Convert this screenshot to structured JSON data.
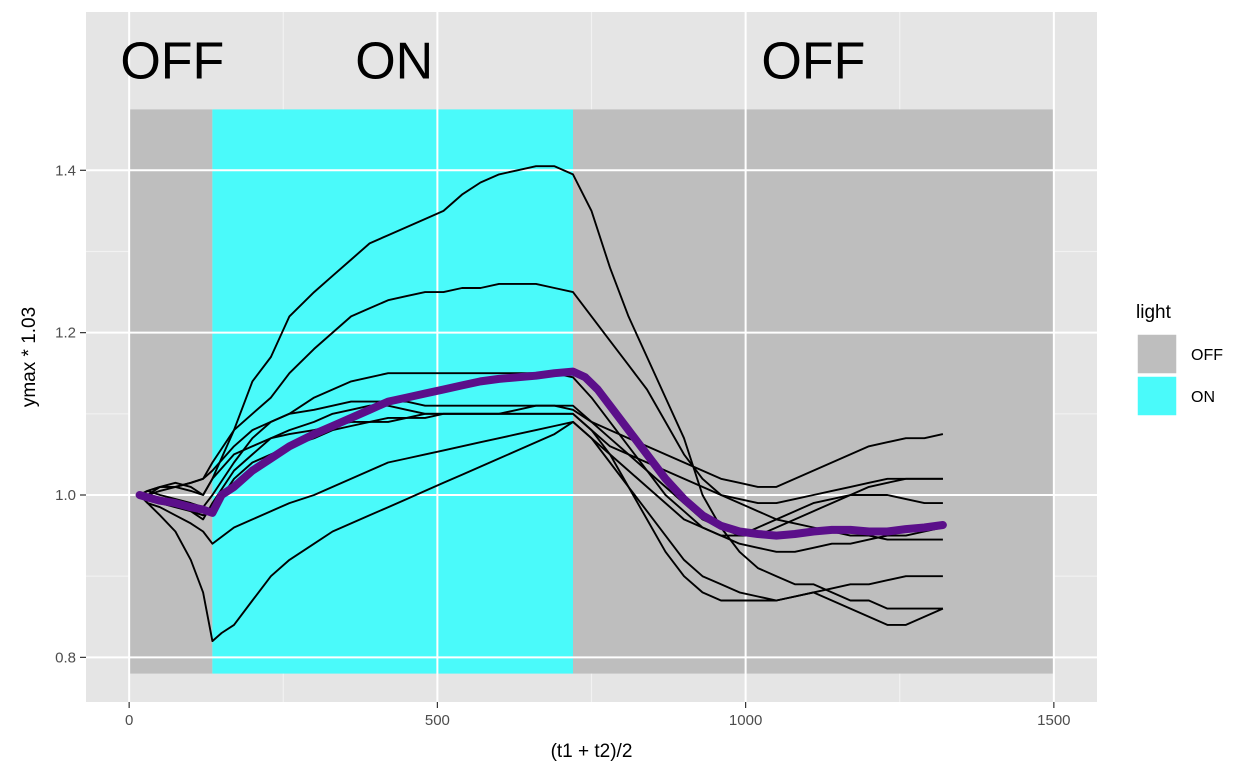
{
  "chart_data": {
    "type": "line",
    "xlabel": "(t1 + t2)/2",
    "ylabel": "ymax * 1.03",
    "xlim": [
      -70,
      1570
    ],
    "ylim": [
      0.745,
      1.595
    ],
    "x_ticks": [
      0,
      500,
      1000,
      1500
    ],
    "x_tick_labels": [
      "0",
      "500",
      "1000",
      "1500"
    ],
    "y_ticks": [
      0.8,
      1.0,
      1.2,
      1.4
    ],
    "y_tick_labels": [
      "0.8",
      "1.0",
      "1.2",
      "1.4"
    ],
    "grid": true,
    "background": "#e5e5e5",
    "light_periods": [
      {
        "state": "OFF",
        "x_start": 0,
        "x_end": 135,
        "color": "#bebebe"
      },
      {
        "state": "ON",
        "x_start": 135,
        "x_end": 720,
        "color": "#4afafa"
      },
      {
        "state": "OFF",
        "x_start": 720,
        "x_end": 1500,
        "color": "#bebebe"
      }
    ],
    "rect_y_range": [
      0.78,
      1.475
    ],
    "region_labels": [
      {
        "text": "OFF",
        "x": 70,
        "y": 1.53
      },
      {
        "text": "ON",
        "x": 430,
        "y": 1.53
      },
      {
        "text": "OFF",
        "x": 1110,
        "y": 1.53
      }
    ],
    "legend": {
      "title": "light",
      "position": "right",
      "entries": [
        {
          "label": "OFF",
          "color": "#bebebe"
        },
        {
          "label": "ON",
          "color": "#4afafa"
        }
      ]
    },
    "series_color": "#000000",
    "mean_color": "#5b0f8a",
    "series": [
      {
        "x": [
          17,
          30,
          50,
          75,
          100,
          120,
          135,
          170,
          200,
          230,
          260,
          300,
          330,
          360,
          390,
          420,
          450,
          480,
          510,
          540,
          570,
          600,
          630,
          660,
          690,
          720,
          750,
          780,
          810,
          840,
          870,
          900,
          930,
          960,
          990,
          1020,
          1050,
          1080,
          1110,
          1140,
          1170,
          1200,
          1230,
          1260,
          1290,
          1320
        ],
        "values": [
          1.0,
          1.0,
          1.01,
          1.015,
          1.01,
          1.0,
          1.02,
          1.08,
          1.14,
          1.17,
          1.22,
          1.25,
          1.27,
          1.29,
          1.31,
          1.32,
          1.33,
          1.34,
          1.35,
          1.37,
          1.385,
          1.395,
          1.4,
          1.405,
          1.405,
          1.395,
          1.35,
          1.28,
          1.22,
          1.17,
          1.12,
          1.07,
          1.0,
          0.96,
          0.93,
          0.91,
          0.9,
          0.89,
          0.89,
          0.88,
          0.87,
          0.87,
          0.86,
          0.86,
          0.86,
          0.86
        ]
      },
      {
        "x": [
          17,
          30,
          50,
          75,
          100,
          120,
          135,
          170,
          200,
          230,
          260,
          300,
          330,
          360,
          390,
          420,
          450,
          480,
          510,
          540,
          570,
          600,
          630,
          660,
          690,
          720,
          750,
          780,
          810,
          840,
          870,
          900,
          930,
          960,
          990,
          1020,
          1050,
          1080,
          1110,
          1140,
          1170,
          1200,
          1230,
          1260,
          1290,
          1320
        ],
        "values": [
          1.0,
          1.005,
          1.01,
          1.01,
          1.015,
          1.02,
          1.04,
          1.08,
          1.1,
          1.12,
          1.15,
          1.18,
          1.2,
          1.22,
          1.23,
          1.24,
          1.245,
          1.25,
          1.25,
          1.255,
          1.255,
          1.26,
          1.26,
          1.26,
          1.255,
          1.25,
          1.22,
          1.19,
          1.16,
          1.13,
          1.09,
          1.05,
          1.02,
          1.0,
          0.99,
          0.98,
          0.97,
          0.965,
          0.96,
          0.955,
          0.95,
          0.95,
          0.945,
          0.945,
          0.945,
          0.945
        ]
      },
      {
        "x": [
          17,
          30,
          50,
          75,
          100,
          120,
          135,
          170,
          200,
          230,
          260,
          300,
          330,
          360,
          390,
          420,
          450,
          480,
          510,
          540,
          570,
          600,
          630,
          660,
          690,
          720,
          750,
          780,
          810,
          840,
          870,
          900,
          930,
          960,
          990,
          1020,
          1050,
          1080,
          1110,
          1140,
          1170,
          1200,
          1230,
          1260,
          1290,
          1320
        ],
        "values": [
          1.0,
          1.0,
          0.995,
          0.99,
          0.98,
          0.97,
          0.99,
          1.03,
          1.05,
          1.07,
          1.08,
          1.09,
          1.1,
          1.105,
          1.11,
          1.11,
          1.105,
          1.1,
          1.1,
          1.1,
          1.1,
          1.1,
          1.105,
          1.11,
          1.11,
          1.11,
          1.09,
          1.07,
          1.05,
          1.03,
          1.01,
          0.99,
          0.97,
          0.96,
          0.95,
          0.95,
          0.96,
          0.97,
          0.98,
          0.99,
          1.0,
          1.01,
          1.015,
          1.02,
          1.02,
          1.02
        ]
      },
      {
        "x": [
          17,
          30,
          50,
          75,
          100,
          120,
          135,
          170,
          200,
          230,
          260,
          300,
          330,
          360,
          390,
          420,
          450,
          480,
          510,
          540,
          570,
          600,
          630,
          660,
          690,
          720,
          750,
          780,
          810,
          840,
          870,
          900,
          930,
          960,
          990,
          1020,
          1050,
          1080,
          1110,
          1140,
          1170,
          1200,
          1230,
          1260,
          1290,
          1320
        ],
        "values": [
          1.0,
          1.005,
          1.01,
          1.01,
          1.005,
          1.0,
          1.02,
          1.05,
          1.06,
          1.07,
          1.075,
          1.08,
          1.085,
          1.09,
          1.09,
          1.095,
          1.095,
          1.1,
          1.1,
          1.1,
          1.1,
          1.1,
          1.1,
          1.1,
          1.1,
          1.1,
          1.08,
          1.06,
          1.05,
          1.04,
          1.03,
          1.02,
          1.01,
          1.0,
          0.995,
          0.99,
          0.99,
          0.995,
          1.0,
          1.005,
          1.01,
          1.015,
          1.02,
          1.02,
          1.02,
          1.02
        ]
      },
      {
        "x": [
          17,
          30,
          50,
          75,
          100,
          120,
          135,
          170,
          200,
          230,
          260,
          300,
          330,
          360,
          390,
          420,
          450,
          480,
          510,
          540,
          570,
          600,
          630,
          660,
          690,
          720,
          750,
          780,
          810,
          840,
          870,
          900,
          930,
          960,
          990,
          1020,
          1050,
          1080,
          1110,
          1140,
          1170,
          1200,
          1230,
          1260,
          1290,
          1320
        ],
        "values": [
          1.0,
          0.99,
          0.985,
          0.975,
          0.965,
          0.955,
          0.94,
          0.96,
          0.97,
          0.98,
          0.99,
          1.0,
          1.01,
          1.02,
          1.03,
          1.04,
          1.045,
          1.05,
          1.055,
          1.06,
          1.065,
          1.07,
          1.075,
          1.08,
          1.085,
          1.09,
          1.07,
          1.04,
          1.01,
          0.98,
          0.95,
          0.92,
          0.9,
          0.89,
          0.88,
          0.875,
          0.87,
          0.875,
          0.88,
          0.885,
          0.89,
          0.89,
          0.895,
          0.9,
          0.9,
          0.9
        ]
      },
      {
        "x": [
          17,
          30,
          50,
          75,
          100,
          120,
          135,
          150,
          170,
          200,
          230,
          260,
          300,
          330,
          360,
          390,
          420,
          450,
          480,
          510,
          540,
          570,
          600,
          630,
          660,
          690,
          720,
          750,
          780,
          810,
          840,
          870,
          900,
          930,
          960,
          990,
          1020,
          1050,
          1080,
          1110,
          1140,
          1170,
          1200,
          1230,
          1260,
          1290,
          1320
        ],
        "values": [
          1.0,
          0.99,
          0.975,
          0.955,
          0.92,
          0.88,
          0.82,
          0.83,
          0.84,
          0.87,
          0.9,
          0.92,
          0.94,
          0.955,
          0.965,
          0.975,
          0.985,
          0.995,
          1.005,
          1.015,
          1.025,
          1.035,
          1.045,
          1.055,
          1.065,
          1.075,
          1.09,
          1.07,
          1.05,
          1.03,
          1.01,
          0.99,
          0.97,
          0.96,
          0.95,
          0.95,
          0.96,
          0.97,
          0.98,
          0.99,
          0.995,
          1.0,
          1.0,
          1.0,
          0.995,
          0.99,
          0.99
        ]
      },
      {
        "x": [
          17,
          30,
          50,
          75,
          100,
          120,
          135,
          170,
          200,
          230,
          260,
          300,
          330,
          360,
          390,
          420,
          450,
          480,
          510,
          540,
          570,
          600,
          630,
          660,
          690,
          720,
          750,
          780,
          810,
          840,
          870,
          900,
          930,
          960,
          990,
          1020,
          1050,
          1080,
          1110,
          1140,
          1170,
          1200,
          1230,
          1260,
          1290,
          1320
        ],
        "values": [
          1.0,
          1.0,
          1.005,
          1.01,
          1.015,
          1.02,
          1.03,
          1.06,
          1.08,
          1.09,
          1.1,
          1.105,
          1.11,
          1.115,
          1.115,
          1.115,
          1.115,
          1.11,
          1.11,
          1.11,
          1.11,
          1.11,
          1.11,
          1.11,
          1.11,
          1.105,
          1.09,
          1.08,
          1.07,
          1.06,
          1.05,
          1.04,
          1.03,
          1.02,
          1.015,
          1.01,
          1.01,
          1.02,
          1.03,
          1.04,
          1.05,
          1.06,
          1.065,
          1.07,
          1.07,
          1.075
        ]
      },
      {
        "x": [
          17,
          30,
          50,
          75,
          100,
          120,
          135,
          170,
          200,
          230,
          260,
          300,
          330,
          360,
          390,
          420,
          450,
          480,
          510,
          540,
          570,
          600,
          630,
          660,
          690,
          720,
          750,
          780,
          810,
          840,
          870,
          900,
          930,
          960,
          990,
          1020,
          1050,
          1080,
          1110,
          1140,
          1170,
          1200,
          1230,
          1260,
          1290,
          1320
        ],
        "values": [
          1.0,
          0.995,
          0.99,
          0.985,
          0.98,
          0.975,
          0.98,
          1.02,
          1.04,
          1.05,
          1.06,
          1.07,
          1.08,
          1.085,
          1.09,
          1.09,
          1.095,
          1.095,
          1.1,
          1.1,
          1.1,
          1.1,
          1.1,
          1.1,
          1.1,
          1.1,
          1.08,
          1.05,
          1.01,
          0.97,
          0.93,
          0.9,
          0.88,
          0.87,
          0.87,
          0.87,
          0.87,
          0.875,
          0.88,
          0.87,
          0.86,
          0.85,
          0.84,
          0.84,
          0.85,
          0.86
        ]
      },
      {
        "x": [
          17,
          30,
          50,
          75,
          100,
          120,
          135,
          170,
          200,
          230,
          260,
          300,
          330,
          360,
          390,
          420,
          450,
          480,
          510,
          540,
          570,
          600,
          630,
          660,
          690,
          720,
          750,
          780,
          810,
          840,
          870,
          900,
          930,
          960,
          990,
          1020,
          1050,
          1080,
          1110,
          1140,
          1170,
          1200,
          1230,
          1260,
          1290,
          1320
        ],
        "values": [
          1.0,
          1.005,
          1.0,
          0.995,
          0.99,
          0.985,
          1.0,
          1.04,
          1.07,
          1.09,
          1.1,
          1.12,
          1.13,
          1.14,
          1.145,
          1.15,
          1.15,
          1.15,
          1.15,
          1.15,
          1.15,
          1.15,
          1.15,
          1.15,
          1.15,
          1.145,
          1.12,
          1.09,
          1.06,
          1.03,
          1.0,
          0.98,
          0.96,
          0.95,
          0.94,
          0.935,
          0.93,
          0.93,
          0.935,
          0.94,
          0.94,
          0.945,
          0.95,
          0.95,
          0.955,
          0.96
        ]
      }
    ],
    "mean_series": {
      "x": [
        17,
        30,
        50,
        75,
        100,
        120,
        135,
        150,
        170,
        200,
        230,
        260,
        300,
        330,
        360,
        390,
        420,
        450,
        480,
        510,
        540,
        570,
        600,
        630,
        660,
        690,
        720,
        740,
        760,
        780,
        810,
        840,
        870,
        900,
        930,
        960,
        990,
        1020,
        1050,
        1080,
        1110,
        1140,
        1170,
        1200,
        1230,
        1260,
        1290,
        1320
      ],
      "values": [
        1.0,
        0.997,
        0.993,
        0.99,
        0.985,
        0.982,
        0.978,
        1.0,
        1.01,
        1.03,
        1.045,
        1.06,
        1.075,
        1.085,
        1.095,
        1.105,
        1.115,
        1.12,
        1.125,
        1.13,
        1.135,
        1.14,
        1.143,
        1.145,
        1.147,
        1.15,
        1.152,
        1.145,
        1.13,
        1.11,
        1.08,
        1.05,
        1.02,
        0.995,
        0.975,
        0.962,
        0.955,
        0.952,
        0.95,
        0.952,
        0.955,
        0.957,
        0.957,
        0.955,
        0.955,
        0.958,
        0.96,
        0.963
      ]
    }
  }
}
